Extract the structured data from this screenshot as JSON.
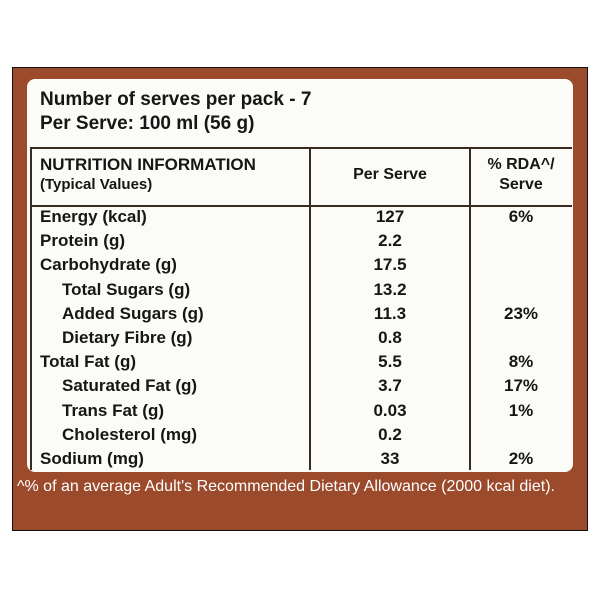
{
  "header": {
    "lines": [
      "Number of serves per pack - 7",
      "Per Serve: 100 ml (56 g)"
    ]
  },
  "table": {
    "columns": [
      [
        "NUTRITION INFORMATION",
        "(Typical Values)"
      ],
      [
        "Per Serve"
      ],
      [
        "% RDA^/",
        "Serve"
      ]
    ],
    "rows": [
      {
        "label": "Energy (kcal)",
        "per_serve": 127,
        "rda": "6%"
      },
      {
        "label": "Protein (g)",
        "per_serve": 2.2
      },
      {
        "label": "Carbohydrate (g)",
        "per_serve": 17.5
      },
      {
        "label": "Total Sugars (g)",
        "per_serve": 13.2
      },
      {
        "label": "Added Sugars (g)",
        "per_serve": 11.3,
        "rda": "23%"
      },
      {
        "label": "Dietary Fibre (g)",
        "per_serve": 0.8
      },
      {
        "label": "Total Fat (g)",
        "per_serve": 5.5,
        "rda": "8%"
      },
      {
        "label": "Saturated Fat (g)",
        "per_serve": 3.7,
        "rda": "17%"
      },
      {
        "label": "Trans Fat (g)",
        "per_serve": 0.03,
        "rda": "1%"
      },
      {
        "label": "Cholesterol (mg)",
        "per_serve": 0.2
      },
      {
        "label": "Sodium (mg)",
        "per_serve": 33,
        "rda": "2%"
      }
    ]
  },
  "footnote": "^% of an average Adult's Recommended Dietary Allowance (2000 kcal diet)."
}
